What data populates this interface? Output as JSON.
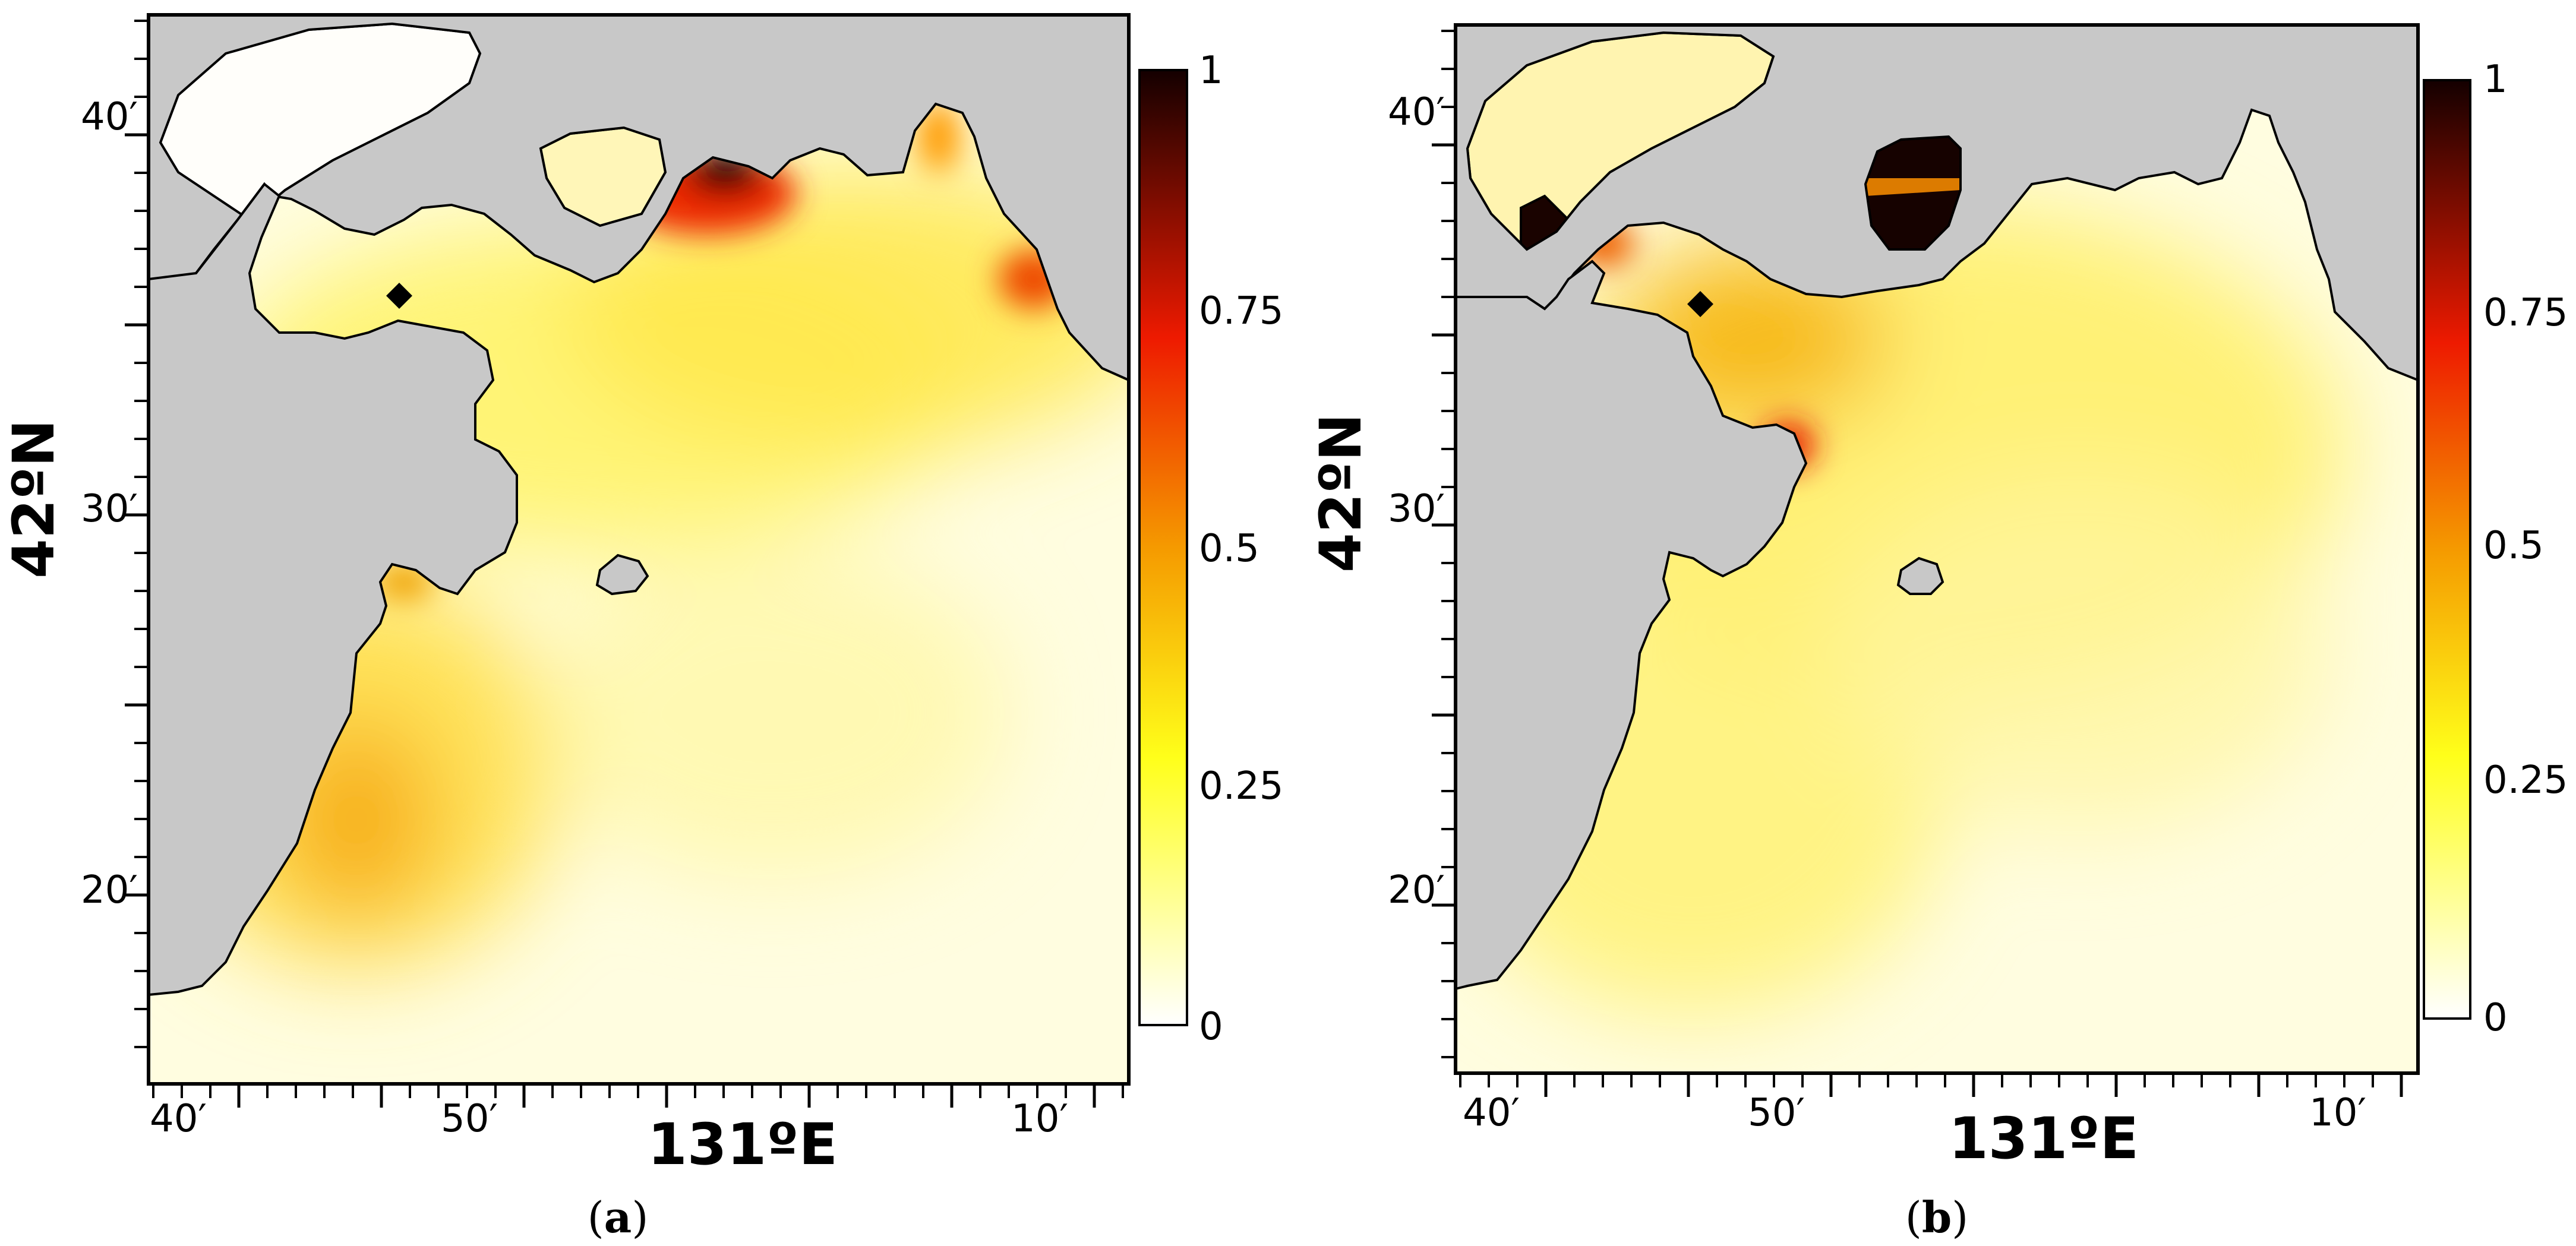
{
  "colors": {
    "land": "#c8c8c8",
    "sea_low": "#ffffff",
    "sea_mid": "#ffff3c",
    "sea_orange": "#f5a000",
    "sea_red": "#e81e00",
    "sea_black": "#160200",
    "marker": "#000000"
  },
  "colorbar": {
    "ticks": [
      "1",
      "0.75",
      "0.5",
      "0.25",
      "0"
    ]
  },
  "panels": [
    {
      "id": "a",
      "caption_open": "(",
      "caption_letter": "a",
      "caption_close": ")",
      "x_title": "131ºE",
      "y_title": "42ºN",
      "x_ticks": [
        "40′",
        "50′",
        "10′"
      ],
      "y_ticks": [
        "40′",
        "30′",
        "20′"
      ]
    },
    {
      "id": "b",
      "caption_open": "(",
      "caption_letter": "b",
      "caption_close": ")",
      "x_title": "131ºE",
      "y_title": "42ºN",
      "x_ticks": [
        "40′",
        "50′",
        "10′"
      ],
      "y_ticks": [
        "40′",
        "30′",
        "20′"
      ]
    }
  ]
}
